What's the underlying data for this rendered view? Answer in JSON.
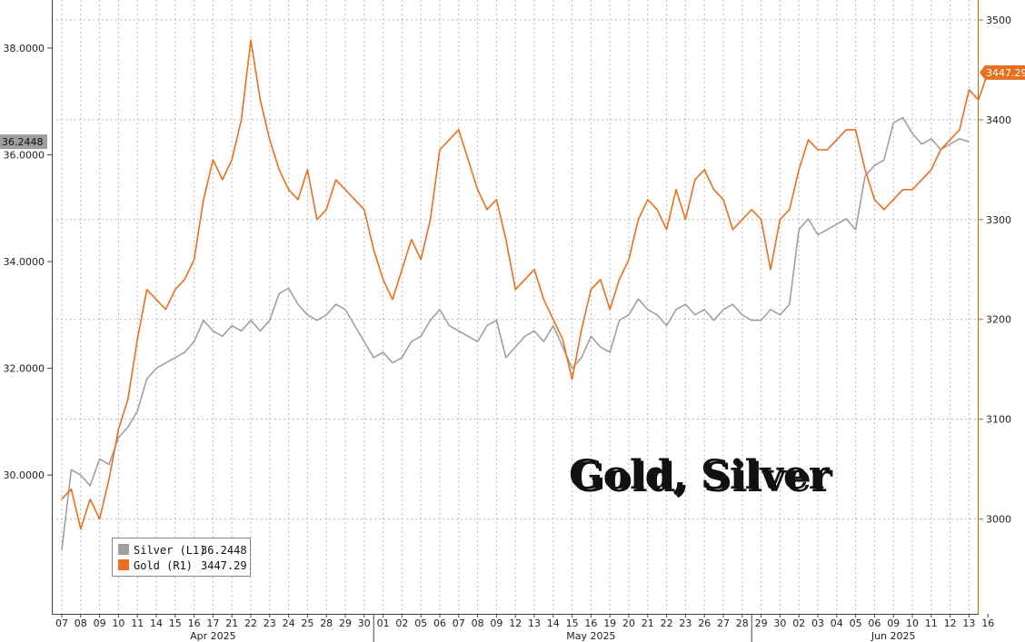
{
  "chart_data": {
    "type": "line",
    "title": "Gold, Silver",
    "grid": true,
    "legend_placement": "bottom-left",
    "x_tick_labels": [
      "07",
      "08",
      "09",
      "10",
      "11",
      "14",
      "15",
      "16",
      "17",
      "21",
      "22",
      "23",
      "24",
      "25",
      "28",
      "29",
      "30",
      "01",
      "02",
      "05",
      "06",
      "07",
      "08",
      "09",
      "12",
      "13",
      "14",
      "15",
      "16",
      "19",
      "20",
      "21",
      "22",
      "23",
      "26",
      "27",
      "28",
      "29",
      "30",
      "02",
      "03",
      "04",
      "05",
      "06",
      "09",
      "10",
      "11",
      "12",
      "13",
      "16"
    ],
    "month_labels": [
      {
        "label": "Apr 2025",
        "tick_index": 8
      },
      {
        "label": "May 2025",
        "tick_index": 28
      },
      {
        "label": "Jun 2025",
        "tick_index": 44
      }
    ],
    "left_axis": {
      "ticks": [
        "30.0000",
        "32.0000",
        "34.0000",
        "36.0000",
        "38.0000"
      ],
      "tick_values": [
        30,
        32,
        34,
        36,
        38
      ],
      "range": [
        27.4,
        38.9
      ]
    },
    "right_axis": {
      "ticks": [
        "3000",
        "3100",
        "3200",
        "3300",
        "3400",
        "3500"
      ],
      "tick_values": [
        3000,
        3100,
        3200,
        3300,
        3400,
        3500
      ],
      "range": [
        2905,
        3520
      ]
    },
    "series": [
      {
        "name": "Silver (L1)",
        "last_value": "36.2448",
        "axis": "left",
        "color": "#a0a0a0",
        "points": [
          [
            0,
            28.6
          ],
          [
            0.5,
            30.1
          ],
          [
            1.0,
            30.0
          ],
          [
            1.5,
            29.8
          ],
          [
            2.0,
            30.3
          ],
          [
            2.5,
            30.2
          ],
          [
            3.0,
            30.7
          ],
          [
            3.5,
            30.9
          ],
          [
            4.0,
            31.2
          ],
          [
            4.5,
            31.8
          ],
          [
            5.0,
            32.0
          ],
          [
            5.5,
            32.1
          ],
          [
            6.0,
            32.2
          ],
          [
            6.5,
            32.3
          ],
          [
            7.0,
            32.5
          ],
          [
            7.5,
            32.9
          ],
          [
            8.0,
            32.7
          ],
          [
            8.5,
            32.6
          ],
          [
            9.0,
            32.8
          ],
          [
            9.5,
            32.7
          ],
          [
            10.0,
            32.9
          ],
          [
            10.5,
            32.7
          ],
          [
            11.0,
            32.9
          ],
          [
            11.5,
            33.4
          ],
          [
            12.0,
            33.5
          ],
          [
            12.5,
            33.2
          ],
          [
            13.0,
            33.0
          ],
          [
            13.5,
            32.9
          ],
          [
            14.0,
            33.0
          ],
          [
            14.5,
            33.2
          ],
          [
            15.0,
            33.1
          ],
          [
            15.5,
            32.8
          ],
          [
            16.0,
            32.5
          ],
          [
            16.5,
            32.2
          ],
          [
            17.0,
            32.3
          ],
          [
            17.5,
            32.1
          ],
          [
            18.0,
            32.2
          ],
          [
            18.5,
            32.5
          ],
          [
            19.0,
            32.6
          ],
          [
            19.5,
            32.9
          ],
          [
            20.0,
            33.1
          ],
          [
            20.5,
            32.8
          ],
          [
            21.0,
            32.7
          ],
          [
            21.5,
            32.6
          ],
          [
            22.0,
            32.5
          ],
          [
            22.5,
            32.8
          ],
          [
            23.0,
            32.9
          ],
          [
            23.5,
            32.2
          ],
          [
            24.0,
            32.4
          ],
          [
            24.5,
            32.6
          ],
          [
            25.0,
            32.7
          ],
          [
            25.5,
            32.5
          ],
          [
            26.0,
            32.8
          ],
          [
            26.5,
            32.4
          ],
          [
            27.0,
            32.0
          ],
          [
            27.5,
            32.2
          ],
          [
            28.0,
            32.6
          ],
          [
            28.5,
            32.4
          ],
          [
            29.0,
            32.3
          ],
          [
            29.5,
            32.9
          ],
          [
            30.0,
            33.0
          ],
          [
            30.5,
            33.3
          ],
          [
            31.0,
            33.1
          ],
          [
            31.5,
            33.0
          ],
          [
            32.0,
            32.8
          ],
          [
            32.5,
            33.1
          ],
          [
            33.0,
            33.2
          ],
          [
            33.5,
            33.0
          ],
          [
            34.0,
            33.1
          ],
          [
            34.5,
            32.9
          ],
          [
            35.0,
            33.1
          ],
          [
            35.5,
            33.2
          ],
          [
            36.0,
            33.0
          ],
          [
            36.5,
            32.9
          ],
          [
            37.0,
            32.9
          ],
          [
            37.5,
            33.1
          ],
          [
            38.0,
            33.0
          ],
          [
            38.5,
            33.2
          ],
          [
            39.0,
            34.6
          ],
          [
            39.5,
            34.8
          ],
          [
            40.0,
            34.5
          ],
          [
            40.5,
            34.6
          ],
          [
            41.0,
            34.7
          ],
          [
            41.5,
            34.8
          ],
          [
            42.0,
            34.6
          ],
          [
            42.5,
            35.6
          ],
          [
            43.0,
            35.8
          ],
          [
            43.5,
            35.9
          ],
          [
            44.0,
            36.6
          ],
          [
            44.5,
            36.7
          ],
          [
            45.0,
            36.4
          ],
          [
            45.5,
            36.2
          ],
          [
            46.0,
            36.3
          ],
          [
            46.5,
            36.1
          ],
          [
            47.0,
            36.2
          ],
          [
            47.5,
            36.3
          ],
          [
            48.0,
            36.2448
          ]
        ]
      },
      {
        "name": "Gold (R1)",
        "last_value": "3447.29",
        "axis": "right",
        "color": "#e8701e",
        "points": [
          [
            0,
            3020
          ],
          [
            0.5,
            3030
          ],
          [
            1.0,
            2990
          ],
          [
            1.5,
            3020
          ],
          [
            2.0,
            3000
          ],
          [
            2.5,
            3040
          ],
          [
            3.0,
            3090
          ],
          [
            3.5,
            3120
          ],
          [
            4.0,
            3180
          ],
          [
            4.5,
            3230
          ],
          [
            5.0,
            3220
          ],
          [
            5.5,
            3210
          ],
          [
            6.0,
            3230
          ],
          [
            6.5,
            3240
          ],
          [
            7.0,
            3260
          ],
          [
            7.5,
            3320
          ],
          [
            8.0,
            3360
          ],
          [
            8.5,
            3340
          ],
          [
            9.0,
            3360
          ],
          [
            9.5,
            3400
          ],
          [
            10.0,
            3480
          ],
          [
            10.5,
            3420
          ],
          [
            11.0,
            3380
          ],
          [
            11.5,
            3350
          ],
          [
            12.0,
            3330
          ],
          [
            12.5,
            3320
          ],
          [
            13.0,
            3350
          ],
          [
            13.5,
            3300
          ],
          [
            14.0,
            3310
          ],
          [
            14.5,
            3340
          ],
          [
            15.0,
            3330
          ],
          [
            15.5,
            3320
          ],
          [
            16.0,
            3310
          ],
          [
            16.5,
            3270
          ],
          [
            17.0,
            3240
          ],
          [
            17.5,
            3220
          ],
          [
            18.0,
            3250
          ],
          [
            18.5,
            3280
          ],
          [
            19.0,
            3260
          ],
          [
            19.5,
            3300
          ],
          [
            20.0,
            3370
          ],
          [
            20.5,
            3380
          ],
          [
            21.0,
            3390
          ],
          [
            21.5,
            3360
          ],
          [
            22.0,
            3330
          ],
          [
            22.5,
            3310
          ],
          [
            23.0,
            3320
          ],
          [
            23.5,
            3280
          ],
          [
            24.0,
            3230
          ],
          [
            24.5,
            3240
          ],
          [
            25.0,
            3250
          ],
          [
            25.5,
            3220
          ],
          [
            26.0,
            3200
          ],
          [
            26.5,
            3180
          ],
          [
            27.0,
            3140
          ],
          [
            27.5,
            3190
          ],
          [
            28.0,
            3230
          ],
          [
            28.5,
            3240
          ],
          [
            29.0,
            3210
          ],
          [
            29.5,
            3240
          ],
          [
            30.0,
            3260
          ],
          [
            30.5,
            3300
          ],
          [
            31.0,
            3320
          ],
          [
            31.5,
            3310
          ],
          [
            32.0,
            3290
          ],
          [
            32.5,
            3330
          ],
          [
            33.0,
            3300
          ],
          [
            33.5,
            3340
          ],
          [
            34.0,
            3350
          ],
          [
            34.5,
            3330
          ],
          [
            35.0,
            3320
          ],
          [
            35.5,
            3290
          ],
          [
            36.0,
            3300
          ],
          [
            36.5,
            3310
          ],
          [
            37.0,
            3300
          ],
          [
            37.5,
            3250
          ],
          [
            38.0,
            3300
          ],
          [
            38.5,
            3310
          ],
          [
            39.0,
            3350
          ],
          [
            39.5,
            3380
          ],
          [
            40.0,
            3370
          ],
          [
            40.5,
            3370
          ],
          [
            41.0,
            3380
          ],
          [
            41.5,
            3390
          ],
          [
            42.0,
            3390
          ],
          [
            42.5,
            3350
          ],
          [
            43.0,
            3320
          ],
          [
            43.5,
            3310
          ],
          [
            44.0,
            3320
          ],
          [
            44.5,
            3330
          ],
          [
            45.0,
            3330
          ],
          [
            45.5,
            3340
          ],
          [
            46.0,
            3350
          ],
          [
            46.5,
            3370
          ],
          [
            47.0,
            3380
          ],
          [
            47.5,
            3390
          ],
          [
            48.0,
            3430
          ],
          [
            48.5,
            3420
          ],
          [
            49.0,
            3447.29
          ]
        ]
      }
    ]
  }
}
